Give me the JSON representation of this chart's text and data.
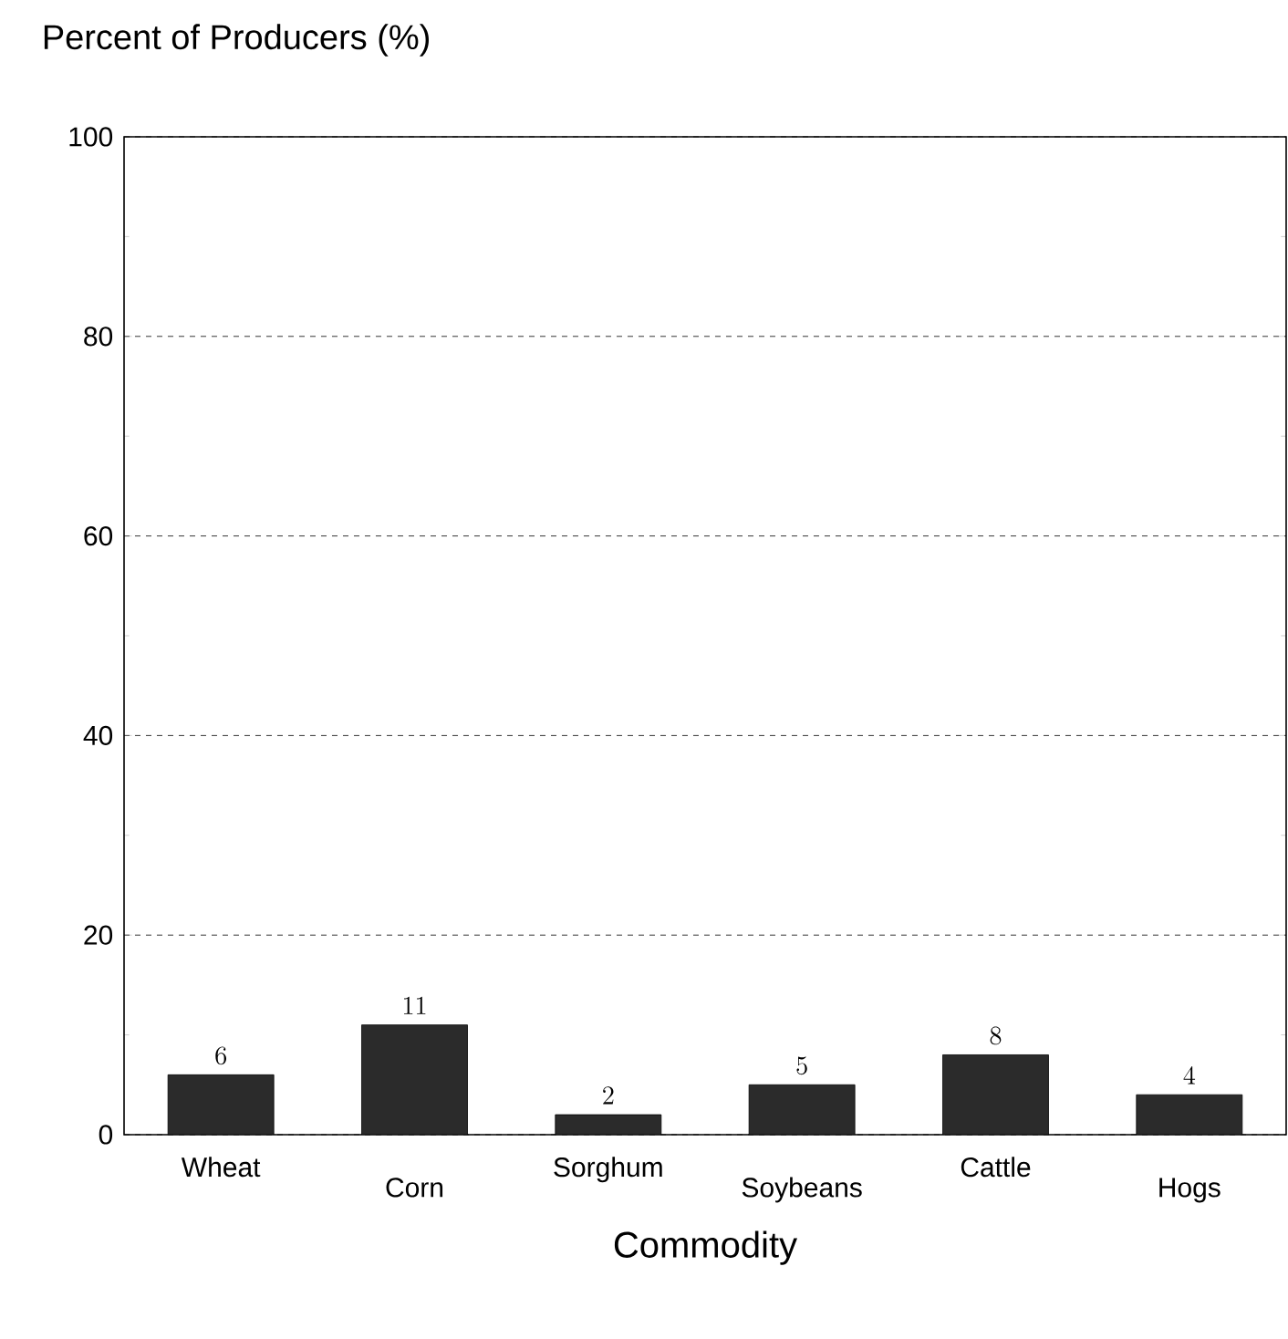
{
  "chart_data": {
    "type": "bar",
    "ylabel": "Percent of Producers (%)",
    "xlabel": "Commodity",
    "categories": [
      "Wheat",
      "Corn",
      "Sorghum",
      "Soybeans",
      "Cattle",
      "Hogs"
    ],
    "values": [
      6,
      11,
      2,
      5,
      8,
      4
    ],
    "color": "#2b2b2b",
    "ylim": [
      0,
      100
    ],
    "yticks": [
      0,
      20,
      40,
      60,
      80,
      100
    ],
    "grid": "y",
    "data_labels": true
  }
}
